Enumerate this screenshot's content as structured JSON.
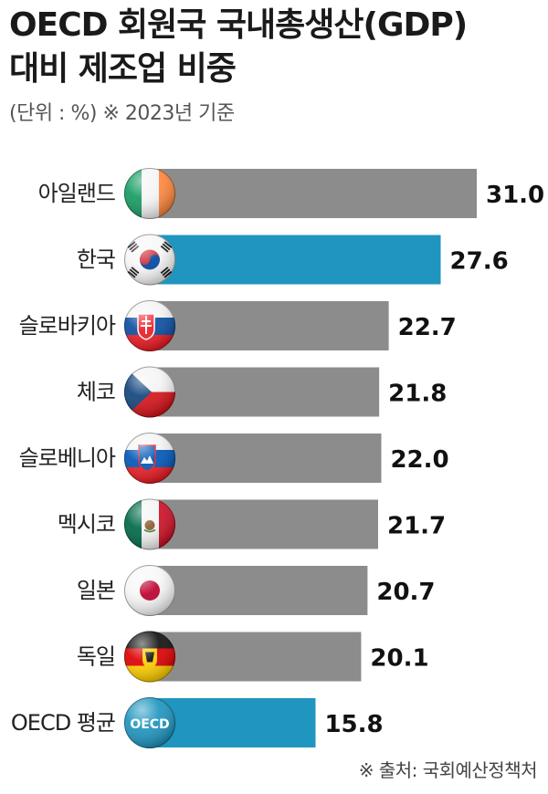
{
  "header": {
    "title_line1": "OECD 회원국 국내총생산(GDP)",
    "title_line2": "대비 제조업 비중",
    "unit_note": "(단위 : %) ※ 2023년 기준"
  },
  "footer": {
    "source": "※ 출처: 국회예산정책처"
  },
  "colors": {
    "default_bar": "#8c8c8c",
    "highlight_bar": "#1f95bf"
  },
  "chart_data": {
    "type": "bar",
    "orientation": "horizontal",
    "categories": [
      "아일랜드",
      "한국",
      "슬로바키아",
      "체코",
      "슬로베니아",
      "멕시코",
      "일본",
      "독일",
      "OECD 평균"
    ],
    "values": [
      31.0,
      27.6,
      22.7,
      21.8,
      22.0,
      21.7,
      20.7,
      20.1,
      15.8
    ],
    "value_labels": [
      "31.0",
      "27.6",
      "22.7",
      "21.8",
      "22.0",
      "21.7",
      "20.7",
      "20.1",
      "15.8"
    ],
    "highlight": [
      "한국",
      "OECD 평균"
    ],
    "flag_icons": [
      "ireland-flag-icon",
      "korea-flag-icon",
      "slovakia-flag-icon",
      "czech-flag-icon",
      "slovenia-flag-icon",
      "mexico-flag-icon",
      "japan-flag-icon",
      "germany-flag-icon",
      "oecd-badge-icon"
    ],
    "badge_text": "OECD",
    "xlim": [
      0,
      31.0
    ]
  }
}
